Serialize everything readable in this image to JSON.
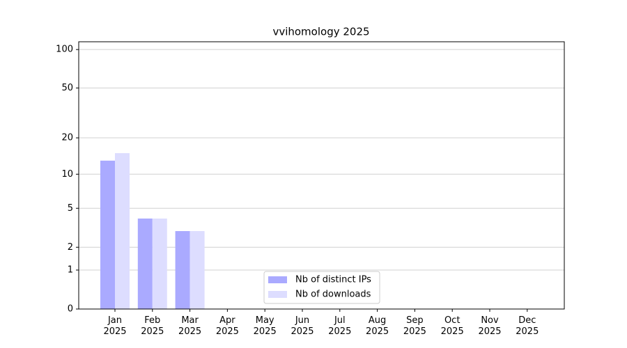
{
  "chart_data": {
    "type": "bar",
    "title": "vvihomology 2025",
    "categories": [
      "Jan\n2025",
      "Feb\n2025",
      "Mar\n2025",
      "Apr\n2025",
      "May\n2025",
      "Jun\n2025",
      "Jul\n2025",
      "Aug\n2025",
      "Sep\n2025",
      "Oct\n2025",
      "Nov\n2025",
      "Dec\n2025"
    ],
    "series": [
      {
        "name": "Nb of distinct IPs",
        "color": "#aaaaff",
        "values": [
          13,
          4,
          3,
          null,
          null,
          null,
          null,
          null,
          null,
          null,
          null,
          null
        ]
      },
      {
        "name": "Nb of downloads",
        "color": "#ddddff",
        "values": [
          15,
          4,
          3,
          null,
          null,
          null,
          null,
          null,
          null,
          null,
          null,
          null
        ]
      }
    ],
    "yscale": "log1p",
    "ylim": [
      0,
      115
    ],
    "yticks": [
      0,
      1,
      2,
      5,
      10,
      20,
      50,
      100
    ],
    "grid": true,
    "legend": "lower center"
  }
}
